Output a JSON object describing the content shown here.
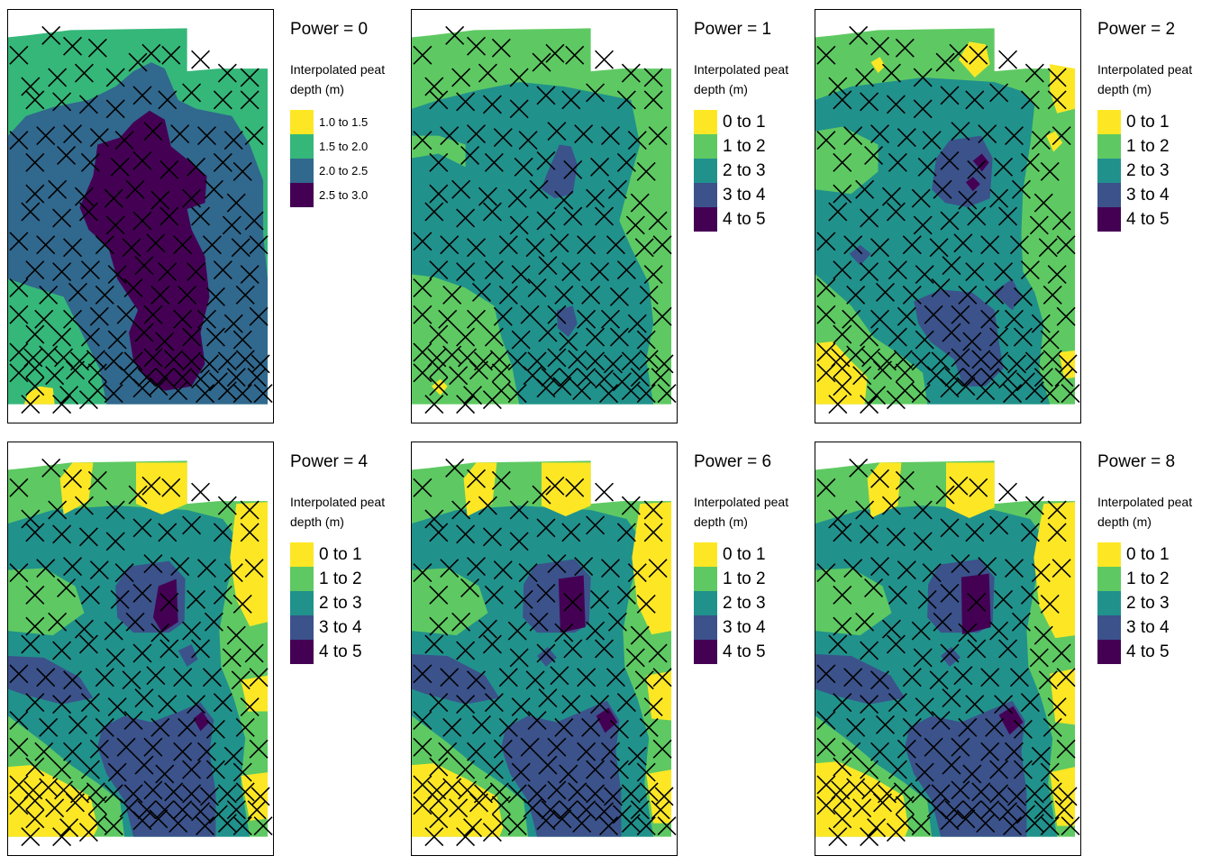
{
  "palette": {
    "yellow": "#fde725",
    "lightgreen": "#5ec962",
    "teal": "#21918c",
    "blue": "#3b528b",
    "purple": "#440154",
    "outside": "#ffffff"
  },
  "legend_subtitle_lines": [
    "Interpolated peat",
    "depth (m)"
  ],
  "panels": [
    {
      "title": "Power = 0",
      "legend": [
        {
          "label": "1.0 to 1.5",
          "color": "#fde725"
        },
        {
          "label": "1.5 to 2.0",
          "color": "#35b779"
        },
        {
          "label": "2.0 to 2.5",
          "color": "#31688e"
        },
        {
          "label": "2.5 to 3.0",
          "color": "#440154"
        }
      ]
    },
    {
      "title": "Power = 1",
      "legend": [
        {
          "label": "0 to 1",
          "color": "#fde725"
        },
        {
          "label": "1 to 2",
          "color": "#5ec962"
        },
        {
          "label": "2 to 3",
          "color": "#21918c"
        },
        {
          "label": "3 to 4",
          "color": "#3b528b"
        },
        {
          "label": "4 to 5",
          "color": "#440154"
        }
      ]
    },
    {
      "title": "Power = 2",
      "legend": [
        {
          "label": "0 to 1",
          "color": "#fde725"
        },
        {
          "label": "1 to 2",
          "color": "#5ec962"
        },
        {
          "label": "2 to 3",
          "color": "#21918c"
        },
        {
          "label": "3 to 4",
          "color": "#3b528b"
        },
        {
          "label": "4 to 5",
          "color": "#440154"
        }
      ]
    },
    {
      "title": "Power = 4",
      "legend": [
        {
          "label": "0 to 1",
          "color": "#fde725"
        },
        {
          "label": "1 to 2",
          "color": "#5ec962"
        },
        {
          "label": "2 to 3",
          "color": "#21918c"
        },
        {
          "label": "3 to 4",
          "color": "#3b528b"
        },
        {
          "label": "4 to 5",
          "color": "#440154"
        }
      ]
    },
    {
      "title": "Power = 6",
      "legend": [
        {
          "label": "0 to 1",
          "color": "#fde725"
        },
        {
          "label": "1 to 2",
          "color": "#5ec962"
        },
        {
          "label": "2 to 3",
          "color": "#21918c"
        },
        {
          "label": "3 to 4",
          "color": "#3b528b"
        },
        {
          "label": "4 to 5",
          "color": "#440154"
        }
      ]
    },
    {
      "title": "Power = 8",
      "legend": [
        {
          "label": "0 to 1",
          "color": "#fde725"
        },
        {
          "label": "1 to 2",
          "color": "#5ec962"
        },
        {
          "label": "2 to 3",
          "color": "#21918c"
        },
        {
          "label": "3 to 4",
          "color": "#3b528b"
        },
        {
          "label": "4 to 5",
          "color": "#440154"
        }
      ]
    }
  ],
  "icons": {
    "sample_point": "x-cross-icon"
  }
}
